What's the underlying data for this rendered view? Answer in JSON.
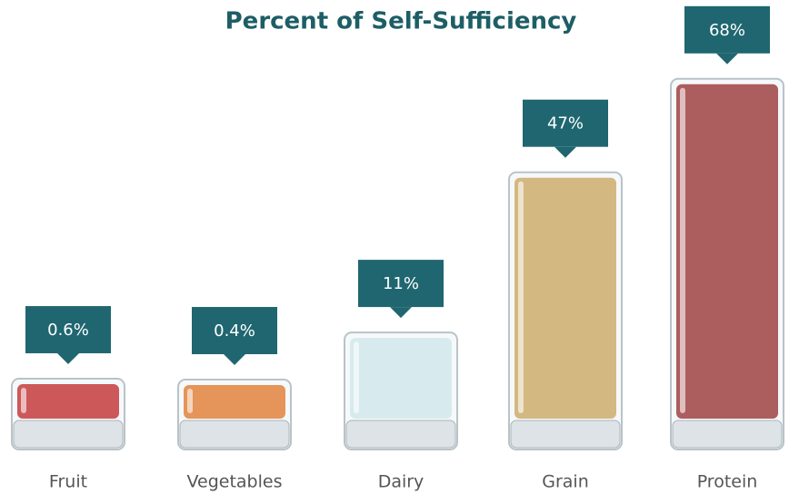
{
  "chart_data": {
    "type": "bar",
    "title": "Percent of Self-Sufficiency",
    "categories": [
      "Fruit",
      "Vegetables",
      "Dairy",
      "Grain",
      "Protein"
    ],
    "values": [
      0.6,
      0.4,
      11,
      47,
      68
    ],
    "value_labels": [
      "0.6%",
      "0.4%",
      "11%",
      "47%",
      "68%"
    ],
    "colors": [
      "#c8282a",
      "#e8782a",
      "#d6ecef",
      "#d2a85e",
      "#9c2f2f"
    ],
    "callout_color": "#1f6670"
  }
}
